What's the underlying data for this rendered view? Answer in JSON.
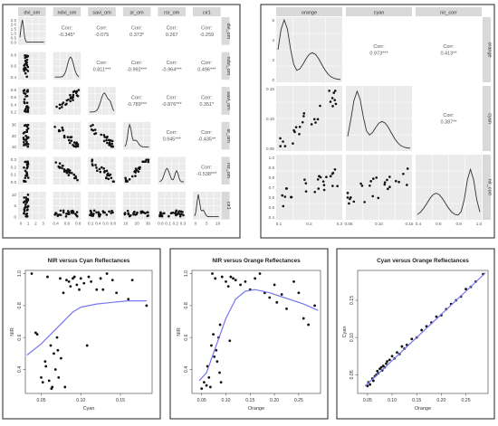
{
  "matrix1": {
    "vars": [
      "dvi_om",
      "ndvi_om",
      "savi_om",
      "sr_om",
      "rsr_om",
      "cir1"
    ],
    "corr": [
      {
        "row": 0,
        "col": 1,
        "label": "Corr:",
        "value": "-0.345*"
      },
      {
        "row": 0,
        "col": 2,
        "label": "Corr:",
        "value": "-0.075"
      },
      {
        "row": 0,
        "col": 3,
        "label": "Corr:",
        "value": "0.373*"
      },
      {
        "row": 0,
        "col": 4,
        "label": "Corr:",
        "value": "0.267"
      },
      {
        "row": 0,
        "col": 5,
        "label": "Corr:",
        "value": "-0.259"
      },
      {
        "row": 1,
        "col": 2,
        "label": "Corr:",
        "value": "0.811***"
      },
      {
        "row": 1,
        "col": 3,
        "label": "Corr:",
        "value": "-0.992***"
      },
      {
        "row": 1,
        "col": 4,
        "label": "Corr:",
        "value": "-0.964***"
      },
      {
        "row": 1,
        "col": 5,
        "label": "Corr:",
        "value": "0.496***"
      },
      {
        "row": 2,
        "col": 3,
        "label": "Corr:",
        "value": "-0.789***"
      },
      {
        "row": 2,
        "col": 4,
        "label": "Corr:",
        "value": "-0.876***"
      },
      {
        "row": 2,
        "col": 5,
        "label": "Corr:",
        "value": "0.351*"
      },
      {
        "row": 3,
        "col": 4,
        "label": "Corr:",
        "value": "0.945***"
      },
      {
        "row": 3,
        "col": 5,
        "label": "Corr:",
        "value": "-0.435**"
      },
      {
        "row": 4,
        "col": 5,
        "label": "Corr:",
        "value": "-0.538***"
      }
    ],
    "left_ticks": [
      [
        "2.5",
        "2.0",
        "1.5",
        "1.0",
        "0.5",
        "0.0"
      ],
      [
        "0.8",
        "0.6",
        "0.4"
      ],
      [
        "0.8",
        "0.6",
        "0.4",
        "0.2"
      ],
      [
        "30",
        "20",
        "10"
      ],
      [
        "0.3",
        "0.2",
        "0.1",
        "0.0"
      ],
      [
        "10",
        "5",
        "0"
      ]
    ],
    "bottom_ticks": [
      [
        "0",
        "1",
        "2",
        "3"
      ],
      [
        "0.4",
        "0.6",
        "0.8"
      ],
      [
        "0.2",
        "0.4",
        "0.6",
        "0.8"
      ],
      [
        "10",
        "20",
        "30"
      ],
      [
        "0.0",
        "0.1",
        "0.2",
        "0.3"
      ],
      [
        "0",
        "5",
        "10"
      ]
    ]
  },
  "matrix2": {
    "vars": [
      "orange",
      "cyan",
      "nir_corr"
    ],
    "corr": [
      {
        "row": 0,
        "col": 1,
        "label": "Corr:",
        "value": "0.973***"
      },
      {
        "row": 0,
        "col": 2,
        "label": "Corr:",
        "value": "0.413**"
      },
      {
        "row": 1,
        "col": 2,
        "label": "Corr:",
        "value": "0.387**"
      }
    ],
    "left_ticks": [
      [
        "6",
        "4",
        "2",
        "0"
      ],
      [
        "0.15",
        "0.10",
        "0.05"
      ],
      [
        "1.0",
        "0.9",
        "0.8",
        "0.7",
        "0.6",
        "0.5",
        "0.4"
      ]
    ],
    "bottom_ticks": [
      [
        "0.1",
        "0.2",
        "0.3"
      ],
      [
        "0.05",
        "0.10",
        "0.15"
      ],
      [
        "0.4",
        "0.6",
        "0.8",
        "1.0"
      ]
    ]
  },
  "chart_data": [
    {
      "type": "scatter",
      "title": "NIR versus Cyan Reflectances",
      "xlabel": "Cyan",
      "ylabel": "NIR",
      "xlim": [
        0.03,
        0.19
      ],
      "ylim": [
        0.25,
        1.02
      ],
      "xticks": [
        "0.05",
        "0.10",
        "0.15"
      ],
      "yticks": [
        "0.4",
        "0.6",
        "0.8",
        "1.0"
      ],
      "points": [
        [
          0.038,
          1.0
        ],
        [
          0.043,
          0.63
        ],
        [
          0.045,
          0.62
        ],
        [
          0.05,
          0.35
        ],
        [
          0.052,
          0.32
        ],
        [
          0.055,
          0.45
        ],
        [
          0.056,
          0.42
        ],
        [
          0.058,
          0.98
        ],
        [
          0.06,
          0.33
        ],
        [
          0.062,
          0.55
        ],
        [
          0.063,
          0.28
        ],
        [
          0.064,
          0.29
        ],
        [
          0.066,
          0.5
        ],
        [
          0.068,
          0.4
        ],
        [
          0.07,
          0.6
        ],
        [
          0.071,
          0.52
        ],
        [
          0.072,
          0.35
        ],
        [
          0.074,
          0.97
        ],
        [
          0.075,
          0.47
        ],
        [
          0.078,
          0.88
        ],
        [
          0.08,
          0.29
        ],
        [
          0.082,
          0.96
        ],
        [
          0.085,
          0.95
        ],
        [
          0.087,
          0.92
        ],
        [
          0.09,
          0.97
        ],
        [
          0.092,
          0.98
        ],
        [
          0.095,
          0.93
        ],
        [
          0.098,
          0.9
        ],
        [
          0.1,
          0.97
        ],
        [
          0.104,
          0.94
        ],
        [
          0.108,
          0.55
        ],
        [
          0.11,
          0.98
        ],
        [
          0.113,
          0.95
        ],
        [
          0.12,
          0.9
        ],
        [
          0.125,
          0.97
        ],
        [
          0.128,
          0.9
        ],
        [
          0.133,
          1.0
        ],
        [
          0.14,
          0.96
        ],
        [
          0.145,
          0.88
        ],
        [
          0.16,
          0.84
        ],
        [
          0.165,
          0.96
        ],
        [
          0.183,
          0.8
        ]
      ],
      "fit": [
        [
          0.032,
          0.49
        ],
        [
          0.05,
          0.56
        ],
        [
          0.07,
          0.66
        ],
        [
          0.09,
          0.76
        ],
        [
          0.1,
          0.79
        ],
        [
          0.12,
          0.81
        ],
        [
          0.14,
          0.82
        ],
        [
          0.16,
          0.83
        ],
        [
          0.183,
          0.83
        ]
      ]
    },
    {
      "type": "scatter",
      "title": "NIR versus Orange Reflectances",
      "xlabel": "Orange",
      "ylabel": "NIR",
      "xlim": [
        0.03,
        0.295
      ],
      "ylim": [
        0.25,
        1.02
      ],
      "xticks": [
        "0.05",
        "0.10",
        "0.15",
        "0.20",
        "0.25"
      ],
      "yticks": [
        "0.4",
        "0.6",
        "0.8",
        "1.0"
      ],
      "points": [
        [
          0.05,
          0.28
        ],
        [
          0.055,
          0.32
        ],
        [
          0.06,
          0.3
        ],
        [
          0.062,
          0.42
        ],
        [
          0.065,
          0.35
        ],
        [
          0.068,
          0.29
        ],
        [
          0.07,
          0.55
        ],
        [
          0.072,
          1.0
        ],
        [
          0.074,
          0.62
        ],
        [
          0.076,
          0.48
        ],
        [
          0.078,
          0.97
        ],
        [
          0.08,
          0.52
        ],
        [
          0.082,
          0.45
        ],
        [
          0.085,
          0.6
        ],
        [
          0.087,
          0.38
        ],
        [
          0.088,
          0.68
        ],
        [
          0.09,
          0.32
        ],
        [
          0.092,
          0.98
        ],
        [
          0.1,
          0.95
        ],
        [
          0.105,
          0.92
        ],
        [
          0.108,
          0.58
        ],
        [
          0.11,
          0.98
        ],
        [
          0.115,
          0.97
        ],
        [
          0.12,
          0.96
        ],
        [
          0.13,
          0.93
        ],
        [
          0.14,
          0.95
        ],
        [
          0.15,
          0.9
        ],
        [
          0.16,
          0.97
        ],
        [
          0.17,
          1.0
        ],
        [
          0.18,
          0.88
        ],
        [
          0.19,
          0.85
        ],
        [
          0.2,
          0.93
        ],
        [
          0.205,
          0.82
        ],
        [
          0.215,
          0.87
        ],
        [
          0.225,
          0.78
        ],
        [
          0.24,
          0.95
        ],
        [
          0.25,
          0.88
        ],
        [
          0.26,
          0.72
        ],
        [
          0.27,
          0.68
        ],
        [
          0.283,
          0.8
        ]
      ],
      "fit": [
        [
          0.045,
          0.33
        ],
        [
          0.06,
          0.38
        ],
        [
          0.08,
          0.55
        ],
        [
          0.1,
          0.72
        ],
        [
          0.12,
          0.84
        ],
        [
          0.14,
          0.89
        ],
        [
          0.16,
          0.9
        ],
        [
          0.19,
          0.88
        ],
        [
          0.22,
          0.85
        ],
        [
          0.26,
          0.81
        ],
        [
          0.29,
          0.77
        ]
      ]
    },
    {
      "type": "scatter",
      "title": "Cyan versus Orange Reflectances",
      "xlabel": "Orange",
      "ylabel": "Cyan",
      "xlim": [
        0.03,
        0.295
      ],
      "ylim": [
        0.025,
        0.19
      ],
      "xticks": [
        "0.05",
        "0.10",
        "0.15",
        "0.20",
        "0.25"
      ],
      "yticks": [
        "0.05",
        "0.10",
        "0.15"
      ],
      "points": [
        [
          0.05,
          0.035
        ],
        [
          0.052,
          0.04
        ],
        [
          0.055,
          0.037
        ],
        [
          0.06,
          0.045
        ],
        [
          0.062,
          0.042
        ],
        [
          0.065,
          0.048
        ],
        [
          0.068,
          0.05
        ],
        [
          0.07,
          0.055
        ],
        [
          0.072,
          0.052
        ],
        [
          0.075,
          0.058
        ],
        [
          0.078,
          0.06
        ],
        [
          0.08,
          0.056
        ],
        [
          0.082,
          0.062
        ],
        [
          0.085,
          0.06
        ],
        [
          0.088,
          0.065
        ],
        [
          0.09,
          0.068
        ],
        [
          0.095,
          0.07
        ],
        [
          0.1,
          0.075
        ],
        [
          0.105,
          0.072
        ],
        [
          0.11,
          0.08
        ],
        [
          0.115,
          0.078
        ],
        [
          0.12,
          0.088
        ],
        [
          0.125,
          0.085
        ],
        [
          0.13,
          0.09
        ],
        [
          0.14,
          0.098
        ],
        [
          0.15,
          0.1
        ],
        [
          0.16,
          0.11
        ],
        [
          0.17,
          0.115
        ],
        [
          0.18,
          0.12
        ],
        [
          0.19,
          0.128
        ],
        [
          0.2,
          0.13
        ],
        [
          0.21,
          0.138
        ],
        [
          0.22,
          0.145
        ],
        [
          0.23,
          0.15
        ],
        [
          0.24,
          0.155
        ],
        [
          0.25,
          0.165
        ],
        [
          0.26,
          0.168
        ],
        [
          0.27,
          0.175
        ],
        [
          0.285,
          0.185
        ]
      ],
      "fit": [
        [
          0.045,
          0.035
        ],
        [
          0.29,
          0.187
        ]
      ]
    }
  ]
}
